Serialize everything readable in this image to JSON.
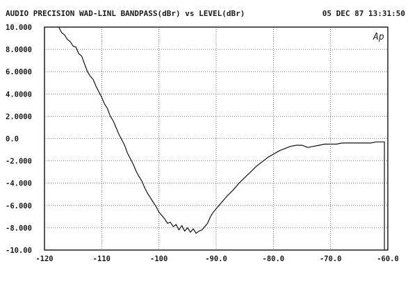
{
  "header": {
    "title": "AUDIO PRECISION WAD-LINL BANDPASS(dBr) vs LEVEL(dBr)",
    "timestamp": "05 DEC 87 13:31:50"
  },
  "logo_text": "Ap",
  "chart_data": {
    "type": "line",
    "title": "AUDIO PRECISION WAD-LINL BANDPASS(dBr) vs LEVEL(dBr)",
    "xlabel": "LEVEL(dBr)",
    "ylabel": "WAD-LINL BANDPASS(dBr)",
    "xlim": [
      -120,
      -60
    ],
    "ylim": [
      -10,
      10
    ],
    "grid": true,
    "x_ticks": [
      {
        "value": -120,
        "label": "-120"
      },
      {
        "value": -110,
        "label": "-110"
      },
      {
        "value": -100,
        "label": "-100"
      },
      {
        "value": -90,
        "label": "-90.0"
      },
      {
        "value": -80,
        "label": "-80.0"
      },
      {
        "value": -70,
        "label": "-70.0"
      },
      {
        "value": -60,
        "label": "-60.0"
      }
    ],
    "y_ticks": [
      {
        "value": 10,
        "label": "10.000"
      },
      {
        "value": 8,
        "label": "8.0000"
      },
      {
        "value": 6,
        "label": "6.0000"
      },
      {
        "value": 4,
        "label": "4.0000"
      },
      {
        "value": 2,
        "label": "2.0000"
      },
      {
        "value": 0,
        "label": "0.0"
      },
      {
        "value": -2,
        "label": "-2.000"
      },
      {
        "value": -4,
        "label": "-4.000"
      },
      {
        "value": -6,
        "label": "-6.000"
      },
      {
        "value": -8,
        "label": "-8.000"
      },
      {
        "value": -10,
        "label": "-10.00"
      }
    ],
    "series": [
      {
        "x": [
          -117.5,
          -117,
          -116.5,
          -116,
          -115.5,
          -115,
          -114.5,
          -114,
          -113.5,
          -113,
          -112.5,
          -112,
          -111.5,
          -111,
          -110.5,
          -110,
          -109.5,
          -109,
          -108.5,
          -108,
          -107.5,
          -107,
          -106.5,
          -106,
          -105.5,
          -105,
          -104.5,
          -104,
          -103.5,
          -103,
          -102.5,
          -102,
          -101.5,
          -101,
          -100.5,
          -100,
          -99.5,
          -99,
          -98.5,
          -98,
          -97.5,
          -97,
          -96.5,
          -96,
          -95.5,
          -95,
          -94.5,
          -94,
          -93.5,
          -93,
          -92.5,
          -92,
          -91.5,
          -91,
          -90.5,
          -90,
          -89,
          -88,
          -87,
          -86,
          -85,
          -84,
          -83,
          -82,
          -81,
          -80,
          -79,
          -78,
          -77,
          -76,
          -75,
          -74,
          -73,
          -72,
          -71,
          -70,
          -69,
          -68,
          -67,
          -66,
          -65,
          -64,
          -63,
          -62,
          -61.2,
          -60.6
        ],
        "y": [
          10.0,
          9.5,
          9.3,
          8.9,
          8.7,
          8.3,
          8.2,
          7.6,
          7.4,
          6.7,
          6.0,
          5.6,
          5.3,
          4.7,
          4.2,
          3.7,
          3.1,
          2.7,
          2.0,
          1.6,
          1.0,
          0.4,
          -0.1,
          -0.6,
          -1.3,
          -1.8,
          -2.3,
          -2.9,
          -3.4,
          -3.8,
          -4.4,
          -4.9,
          -5.3,
          -5.7,
          -6.1,
          -6.6,
          -6.9,
          -7.2,
          -7.6,
          -7.5,
          -7.9,
          -7.7,
          -8.2,
          -7.8,
          -8.3,
          -8.0,
          -8.4,
          -8.1,
          -8.5,
          -8.3,
          -8.2,
          -7.9,
          -7.6,
          -7.0,
          -6.6,
          -6.3,
          -5.7,
          -5.1,
          -4.6,
          -4.0,
          -3.5,
          -3.0,
          -2.5,
          -2.1,
          -1.7,
          -1.4,
          -1.1,
          -0.9,
          -0.7,
          -0.6,
          -0.6,
          -0.8,
          -0.7,
          -0.6,
          -0.5,
          -0.5,
          -0.5,
          -0.4,
          -0.4,
          -0.4,
          -0.4,
          -0.4,
          -0.4,
          -0.3,
          -0.3,
          -0.3
        ]
      }
    ]
  }
}
